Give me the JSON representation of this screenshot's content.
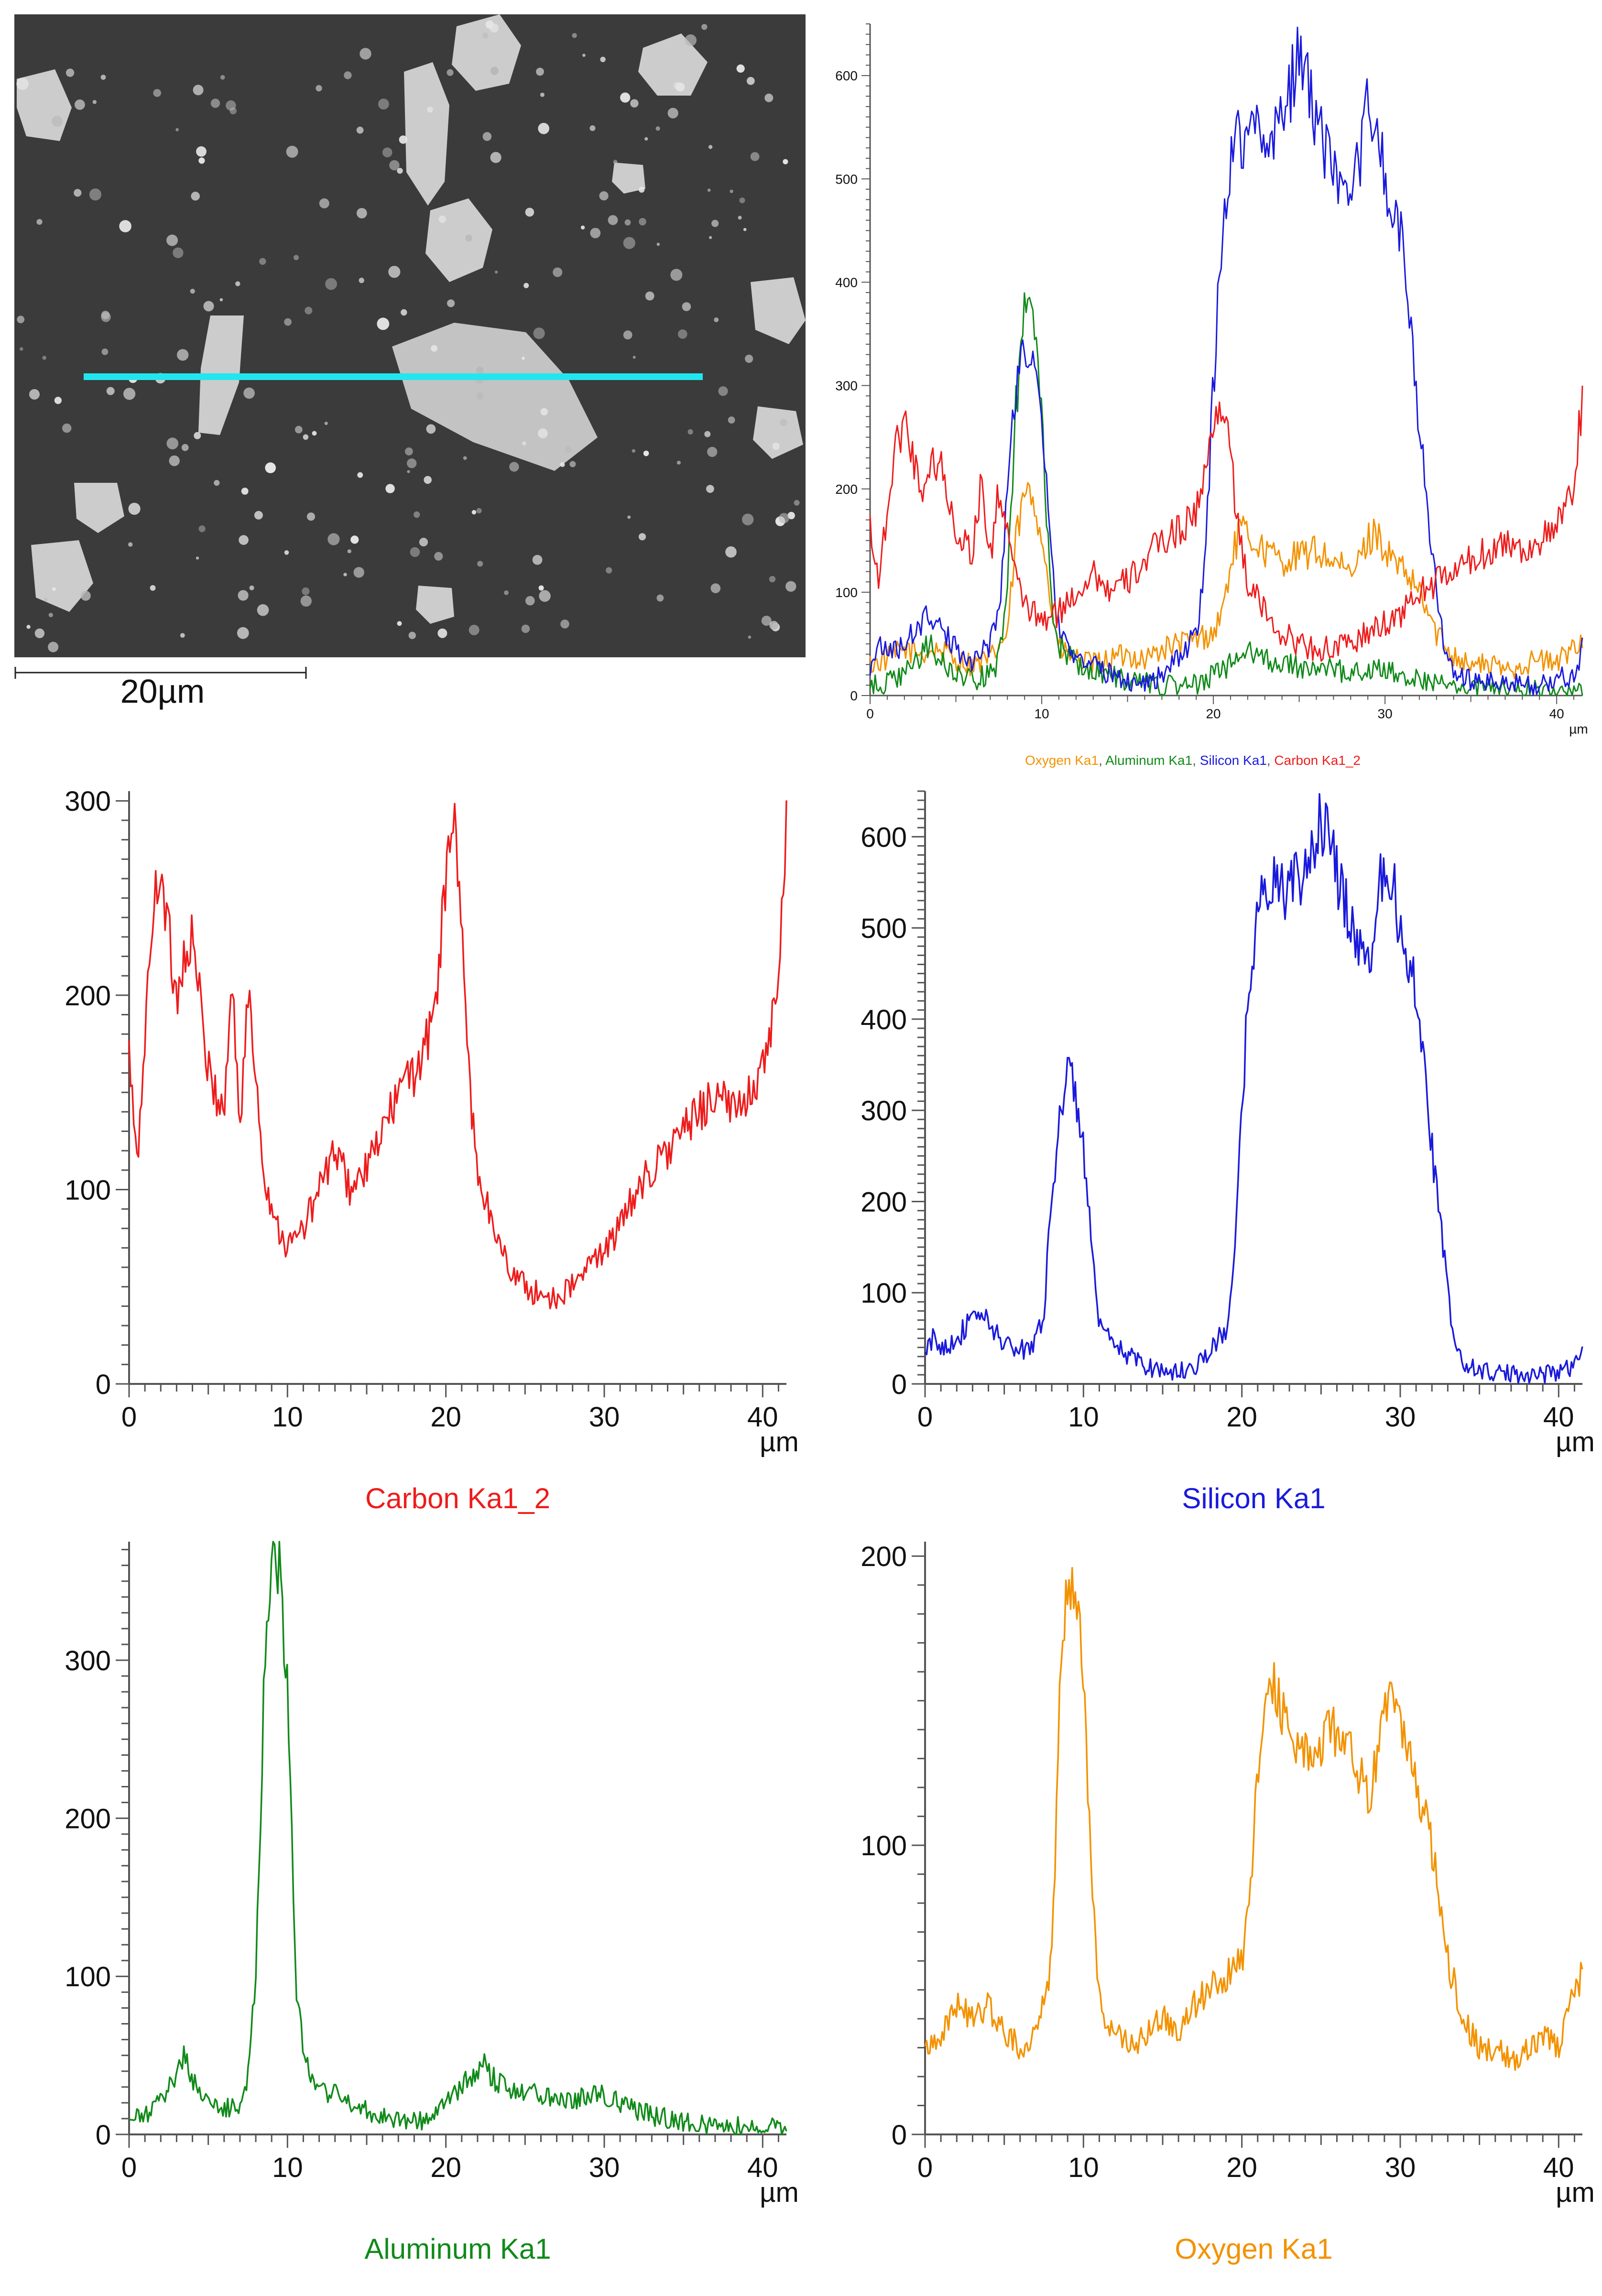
{
  "sem_image": {
    "scale_bar_label": "20µm",
    "line_scan_color": "#22e6ee"
  },
  "colors": {
    "oxygen": "#f39200",
    "aluminum": "#118a1a",
    "silicon": "#1a1adc",
    "carbon": "#ee1c1c"
  },
  "chart_data": [
    {
      "id": "overlay",
      "type": "line",
      "title": "",
      "xlabel": "µm",
      "legend": [
        "Oxygen Ka1",
        "Aluminum Ka1",
        "Silicon Ka1",
        "Carbon Ka1_2"
      ],
      "legend_placement": "bottom",
      "xlim": [
        0,
        41.5
      ],
      "ylim": [
        0,
        650
      ],
      "xticks": [
        0,
        10,
        20,
        30,
        40
      ],
      "yticks": [
        0,
        100,
        200,
        300,
        400,
        500,
        600
      ],
      "series": [
        {
          "name": "Oxygen Ka1",
          "color": "#f39200",
          "x": [
            0,
            1,
            2,
            3,
            4,
            5,
            6,
            7,
            8,
            8.5,
            9,
            9.5,
            10,
            10.5,
            11,
            12,
            13,
            14,
            15,
            16,
            17,
            18,
            19,
            20,
            20.5,
            21,
            21.5,
            22,
            23,
            24,
            25,
            26,
            27,
            28,
            29,
            29.5,
            30,
            31,
            31.5,
            32,
            33,
            34,
            35,
            36,
            37,
            38,
            39,
            40,
            41,
            41.5
          ],
          "y": [
            30,
            35,
            45,
            40,
            45,
            35,
            30,
            35,
            60,
            150,
            195,
            190,
            160,
            90,
            45,
            35,
            30,
            35,
            40,
            35,
            45,
            50,
            55,
            60,
            80,
            125,
            160,
            155,
            140,
            130,
            135,
            140,
            130,
            115,
            150,
            160,
            140,
            120,
            110,
            100,
            60,
            40,
            30,
            30,
            25,
            30,
            35,
            30,
            50,
            55
          ]
        },
        {
          "name": "Aluminum Ka1",
          "color": "#118a1a",
          "x": [
            0,
            1,
            2,
            3,
            3.5,
            4,
            5,
            6,
            7,
            7.5,
            8,
            8.5,
            9,
            9.5,
            10,
            10.5,
            11,
            12,
            13,
            14,
            15,
            16,
            17,
            18,
            19,
            20,
            21,
            22,
            22.5,
            23,
            24,
            25,
            26,
            27,
            28,
            29,
            30,
            31,
            32,
            33,
            34,
            35,
            36,
            37,
            38,
            39,
            40,
            41,
            41.5
          ],
          "y": [
            8,
            12,
            20,
            40,
            50,
            35,
            20,
            15,
            20,
            35,
            100,
            280,
            370,
            360,
            280,
            100,
            50,
            30,
            25,
            20,
            15,
            12,
            10,
            8,
            10,
            20,
            30,
            40,
            45,
            35,
            30,
            28,
            25,
            25,
            22,
            25,
            25,
            20,
            15,
            12,
            10,
            8,
            6,
            6,
            5,
            5,
            5,
            4,
            5
          ]
        },
        {
          "name": "Silicon Ka1",
          "color": "#1a1adc",
          "x": [
            0,
            0.5,
            1,
            2,
            3,
            3.5,
            4,
            5,
            6,
            7,
            7.5,
            8,
            8.5,
            9,
            9.5,
            10,
            10.5,
            11,
            12,
            13,
            14,
            15,
            16,
            17,
            18,
            19,
            19.5,
            20,
            20.5,
            21,
            21.5,
            22,
            23,
            24,
            25,
            25.5,
            26,
            27,
            28,
            28.5,
            29,
            29.5,
            30,
            31,
            32,
            32.5,
            33,
            33.5,
            34,
            35,
            36,
            37,
            38,
            39,
            40,
            41,
            41.5
          ],
          "y": [
            30,
            50,
            40,
            50,
            70,
            80,
            65,
            45,
            35,
            50,
            80,
            200,
            300,
            340,
            320,
            260,
            150,
            60,
            40,
            30,
            20,
            15,
            12,
            20,
            35,
            60,
            120,
            300,
            450,
            520,
            540,
            550,
            540,
            560,
            620,
            590,
            560,
            500,
            460,
            520,
            580,
            560,
            490,
            440,
            260,
            180,
            100,
            40,
            20,
            15,
            12,
            10,
            12,
            10,
            15,
            20,
            45
          ]
        },
        {
          "name": "Carbon Ka1_2",
          "color": "#ee1c1c",
          "x": [
            0,
            0.5,
            1,
            1.5,
            2,
            2.5,
            3,
            3.5,
            4,
            5,
            6,
            6.5,
            7,
            7.5,
            8,
            8.5,
            9,
            9.5,
            10,
            11,
            12,
            13,
            14,
            15,
            16,
            17,
            18,
            19,
            19.5,
            20,
            20.5,
            21,
            21.5,
            22,
            23,
            24,
            25,
            26,
            27,
            28,
            29,
            30,
            31,
            32,
            33,
            34,
            35,
            36,
            37,
            38,
            39,
            40,
            41,
            41.5
          ],
          "y": [
            170,
            110,
            180,
            240,
            270,
            230,
            200,
            220,
            230,
            160,
            140,
            210,
            130,
            200,
            160,
            110,
            90,
            80,
            70,
            80,
            100,
            120,
            100,
            110,
            130,
            150,
            160,
            180,
            210,
            260,
            290,
            240,
            150,
            110,
            80,
            60,
            50,
            45,
            45,
            50,
            60,
            70,
            80,
            100,
            110,
            120,
            130,
            140,
            150,
            140,
            150,
            160,
            200,
            290
          ]
        }
      ]
    },
    {
      "id": "carbon",
      "type": "line",
      "title": "Carbon Ka1_2",
      "xlabel": "µm",
      "xlim": [
        0,
        41.5
      ],
      "ylim": [
        0,
        305
      ],
      "xticks": [
        0,
        10,
        20,
        30,
        40
      ],
      "yticks": [
        0,
        100,
        200,
        300
      ],
      "series": [
        {
          "name": "Carbon Ka1_2",
          "color": "#ee1c1c",
          "x": [
            0,
            0.5,
            1,
            1.5,
            2,
            2.5,
            3,
            3.5,
            4,
            5,
            6,
            6.5,
            7,
            7.5,
            8,
            8.5,
            9,
            9.5,
            10,
            11,
            12,
            13,
            14,
            15,
            16,
            17,
            18,
            19,
            19.5,
            20,
            20.5,
            21,
            21.5,
            22,
            23,
            24,
            25,
            26,
            27,
            28,
            29,
            30,
            31,
            32,
            33,
            34,
            35,
            36,
            37,
            38,
            39,
            40,
            41,
            41.5
          ],
          "y": [
            170,
            110,
            180,
            240,
            270,
            230,
            200,
            220,
            230,
            160,
            140,
            210,
            130,
            200,
            160,
            110,
            90,
            80,
            70,
            80,
            100,
            120,
            100,
            110,
            130,
            150,
            160,
            180,
            210,
            260,
            290,
            240,
            150,
            110,
            80,
            60,
            50,
            45,
            45,
            50,
            60,
            70,
            80,
            100,
            110,
            120,
            130,
            140,
            150,
            140,
            150,
            160,
            200,
            290
          ]
        }
      ]
    },
    {
      "id": "silicon",
      "type": "line",
      "title": "Silicon Ka1",
      "xlabel": "µm",
      "xlim": [
        0,
        41.5
      ],
      "ylim": [
        0,
        650
      ],
      "xticks": [
        0,
        10,
        20,
        30,
        40
      ],
      "yticks": [
        0,
        100,
        200,
        300,
        400,
        500,
        600
      ],
      "series": [
        {
          "name": "Silicon Ka1",
          "color": "#1a1adc",
          "x": [
            0,
            0.5,
            1,
            2,
            3,
            3.5,
            4,
            5,
            6,
            7,
            7.5,
            8,
            8.5,
            9,
            9.5,
            10,
            10.5,
            11,
            12,
            13,
            14,
            15,
            16,
            17,
            18,
            19,
            19.5,
            20,
            20.5,
            21,
            21.5,
            22,
            23,
            24,
            25,
            25.5,
            26,
            27,
            28,
            28.5,
            29,
            29.5,
            30,
            31,
            32,
            32.5,
            33,
            33.5,
            34,
            35,
            36,
            37,
            38,
            39,
            40,
            41,
            41.5
          ],
          "y": [
            30,
            50,
            40,
            50,
            70,
            80,
            65,
            45,
            35,
            50,
            80,
            200,
            300,
            340,
            320,
            260,
            150,
            60,
            40,
            30,
            20,
            15,
            12,
            20,
            35,
            60,
            120,
            300,
            450,
            520,
            540,
            550,
            540,
            560,
            620,
            590,
            560,
            500,
            460,
            520,
            580,
            560,
            490,
            440,
            260,
            180,
            100,
            40,
            20,
            15,
            12,
            10,
            12,
            10,
            15,
            20,
            45
          ]
        }
      ]
    },
    {
      "id": "aluminum",
      "type": "line",
      "title": "Aluminum Ka1",
      "xlabel": "µm",
      "xlim": [
        0,
        41.5
      ],
      "ylim": [
        0,
        375
      ],
      "xticks": [
        0,
        10,
        20,
        30,
        40
      ],
      "yticks": [
        0,
        100,
        200,
        300
      ],
      "series": [
        {
          "name": "Aluminum Ka1",
          "color": "#118a1a",
          "x": [
            0,
            1,
            2,
            3,
            3.5,
            4,
            5,
            6,
            7,
            7.5,
            8,
            8.5,
            9,
            9.5,
            10,
            10.5,
            11,
            12,
            13,
            14,
            15,
            16,
            17,
            18,
            19,
            20,
            21,
            22,
            22.5,
            23,
            24,
            25,
            26,
            27,
            28,
            29,
            30,
            31,
            32,
            33,
            34,
            35,
            36,
            37,
            38,
            39,
            40,
            41,
            41.5
          ],
          "y": [
            8,
            12,
            20,
            40,
            50,
            35,
            20,
            15,
            20,
            35,
            100,
            280,
            370,
            360,
            280,
            100,
            50,
            30,
            25,
            20,
            15,
            12,
            10,
            8,
            10,
            20,
            30,
            40,
            45,
            35,
            30,
            28,
            25,
            25,
            22,
            25,
            25,
            20,
            15,
            12,
            10,
            8,
            6,
            6,
            5,
            5,
            5,
            4,
            5
          ]
        }
      ]
    },
    {
      "id": "oxygen",
      "type": "line",
      "title": "Oxygen Ka1",
      "xlabel": "µm",
      "xlim": [
        0,
        41.5
      ],
      "ylim": [
        0,
        205
      ],
      "xticks": [
        0,
        10,
        20,
        30,
        40
      ],
      "yticks": [
        0,
        100,
        200
      ],
      "series": [
        {
          "name": "Oxygen Ka1",
          "color": "#f39200",
          "x": [
            0,
            1,
            2,
            3,
            4,
            5,
            6,
            7,
            8,
            8.5,
            9,
            9.5,
            10,
            10.5,
            11,
            12,
            13,
            14,
            15,
            16,
            17,
            18,
            19,
            20,
            20.5,
            21,
            21.5,
            22,
            23,
            24,
            25,
            26,
            27,
            28,
            29,
            29.5,
            30,
            31,
            31.5,
            32,
            33,
            34,
            35,
            36,
            37,
            38,
            39,
            40,
            41,
            41.5
          ],
          "y": [
            30,
            35,
            45,
            40,
            45,
            35,
            30,
            35,
            60,
            150,
            195,
            190,
            160,
            90,
            45,
            35,
            30,
            35,
            40,
            35,
            45,
            50,
            55,
            60,
            80,
            125,
            160,
            155,
            140,
            130,
            135,
            140,
            130,
            115,
            150,
            160,
            140,
            120,
            110,
            100,
            60,
            40,
            30,
            30,
            25,
            30,
            35,
            30,
            50,
            55
          ]
        }
      ]
    }
  ]
}
